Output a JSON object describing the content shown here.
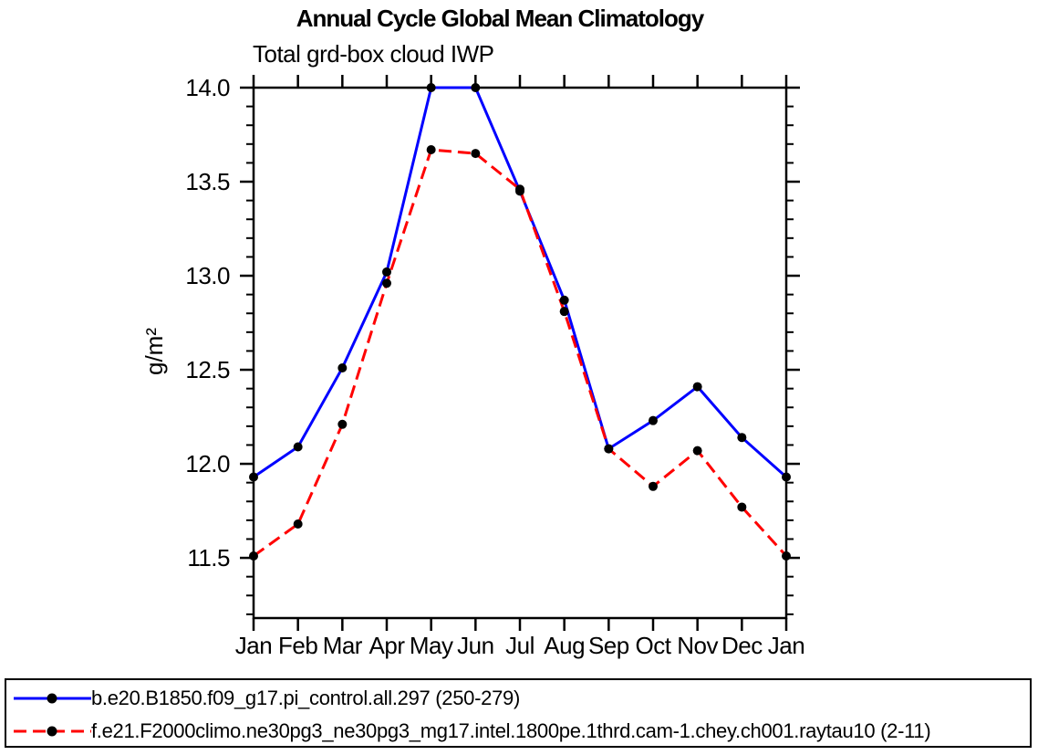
{
  "chart_data": {
    "type": "line",
    "title": "Annual Cycle Global Mean Climatology",
    "subtitle": "Total grd-box cloud IWP",
    "ylabel": "g/m²",
    "categories": [
      "Jan",
      "Feb",
      "Mar",
      "Apr",
      "May",
      "Jun",
      "Jul",
      "Aug",
      "Sep",
      "Oct",
      "Nov",
      "Dec",
      "Jan"
    ],
    "ylim": [
      11.18,
      14.0
    ],
    "y_major_ticks": [
      11.5,
      12.0,
      12.5,
      13.0,
      13.5,
      14.0
    ],
    "y_minor_tick_step": 0.1,
    "grid": false,
    "legend_position": "bottom-left-box",
    "axis_color": "#000000",
    "marker_color": "#000000",
    "series": [
      {
        "name": "b.e20.B1850.f09_g17.pi_control.all.297 (250-279)",
        "color": "#0000ff",
        "line_style": "solid",
        "marker": "circle",
        "values": [
          11.93,
          12.09,
          12.51,
          13.02,
          14.0,
          14.0,
          13.45,
          12.87,
          12.08,
          12.23,
          12.41,
          12.14,
          11.93
        ]
      },
      {
        "name": "f.e21.F2000climo.ne30pg3_ne30pg3_mg17.intel.1800pe.1thrd.cam-1.chey.ch001.raytau10 (2-11)",
        "color": "#ff0000",
        "line_style": "dashed",
        "marker": "circle",
        "values": [
          11.51,
          11.68,
          12.21,
          12.96,
          13.67,
          13.65,
          13.46,
          12.81,
          12.08,
          11.88,
          12.07,
          11.77,
          11.51
        ]
      }
    ]
  }
}
